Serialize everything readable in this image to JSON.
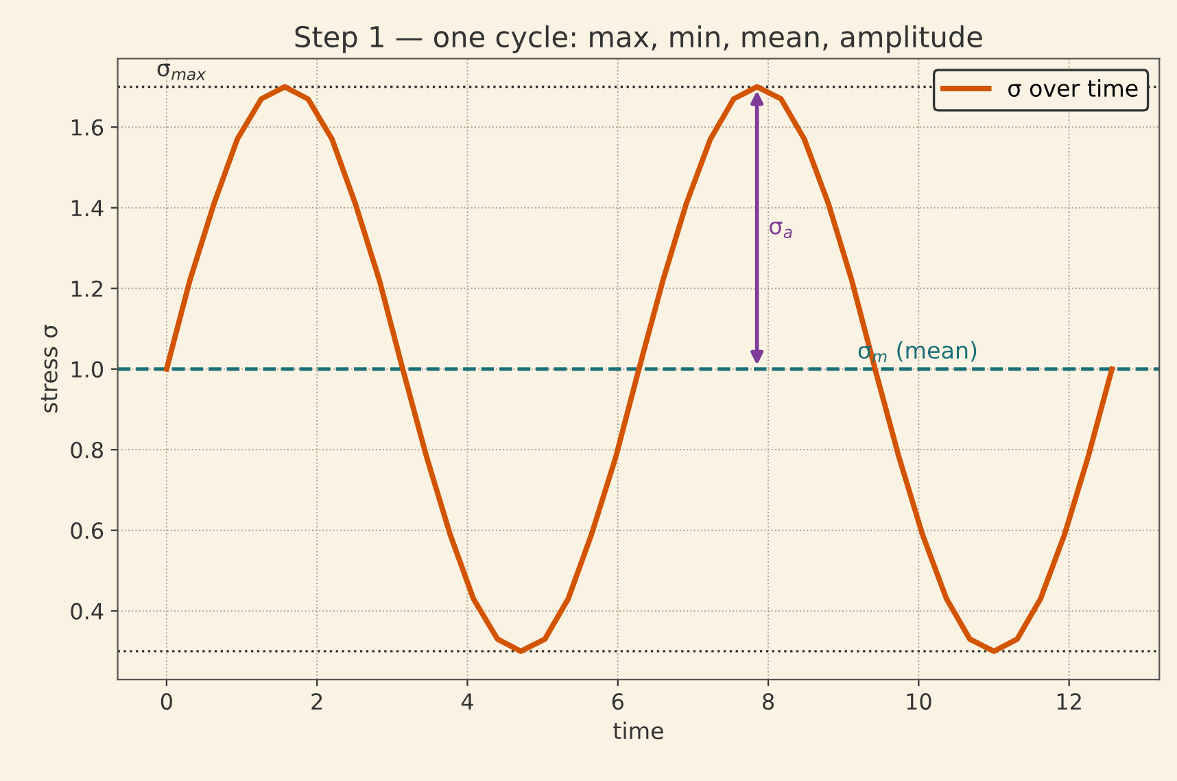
{
  "chart_data": {
    "type": "line",
    "title": "Step 1 — one cycle: max, min, mean, amplitude",
    "xlabel": "time",
    "ylabel": "stress σ",
    "series": [
      {
        "name": "σ over time",
        "color": "#d35400",
        "x": [
          0,
          0.31,
          0.63,
          0.94,
          1.26,
          1.57,
          1.88,
          2.2,
          2.51,
          2.83,
          3.14,
          3.46,
          3.77,
          4.08,
          4.4,
          4.71,
          5.03,
          5.34,
          5.65,
          5.97,
          6.28,
          6.6,
          6.91,
          7.23,
          7.54,
          7.85,
          8.17,
          8.48,
          8.8,
          9.11,
          9.42,
          9.74,
          10.05,
          10.37,
          10.68,
          11.0,
          11.31,
          11.62,
          11.94,
          12.25,
          12.57
        ],
        "values": [
          1.0,
          1.22,
          1.41,
          1.57,
          1.67,
          1.7,
          1.67,
          1.57,
          1.41,
          1.22,
          1.0,
          0.78,
          0.59,
          0.43,
          0.33,
          0.3,
          0.33,
          0.43,
          0.59,
          0.78,
          1.0,
          1.22,
          1.41,
          1.57,
          1.67,
          1.7,
          1.67,
          1.57,
          1.41,
          1.22,
          1.0,
          0.78,
          0.59,
          0.43,
          0.33,
          0.3,
          0.33,
          0.43,
          0.59,
          0.78,
          1.0
        ]
      }
    ],
    "ref_lines": [
      {
        "axis": "y",
        "value": 1.7,
        "label": "σ$_{max}$",
        "color": "#333333",
        "line_style": "dotted"
      },
      {
        "axis": "y",
        "value": 0.3,
        "color": "#333333",
        "line_style": "dotted"
      },
      {
        "axis": "y",
        "value": 1.0,
        "label": "σ$_{m}$ (mean)",
        "color": "#1a6f78",
        "line_style": "dashed"
      }
    ],
    "annotations": [
      "σ$_{a}$"
    ],
    "xlim": [
      -0.65,
      13.2
    ],
    "ylim": [
      0.23,
      1.77
    ],
    "xticks": [
      0,
      2,
      4,
      6,
      8,
      10,
      12
    ],
    "yticks": [
      0.4,
      0.6,
      0.8,
      {
        "value": 1.0,
        "label": "1.0"
      },
      1.2,
      1.4,
      1.6
    ],
    "grid": true,
    "legend": "top right",
    "marker": "none",
    "line_style": "solid"
  }
}
